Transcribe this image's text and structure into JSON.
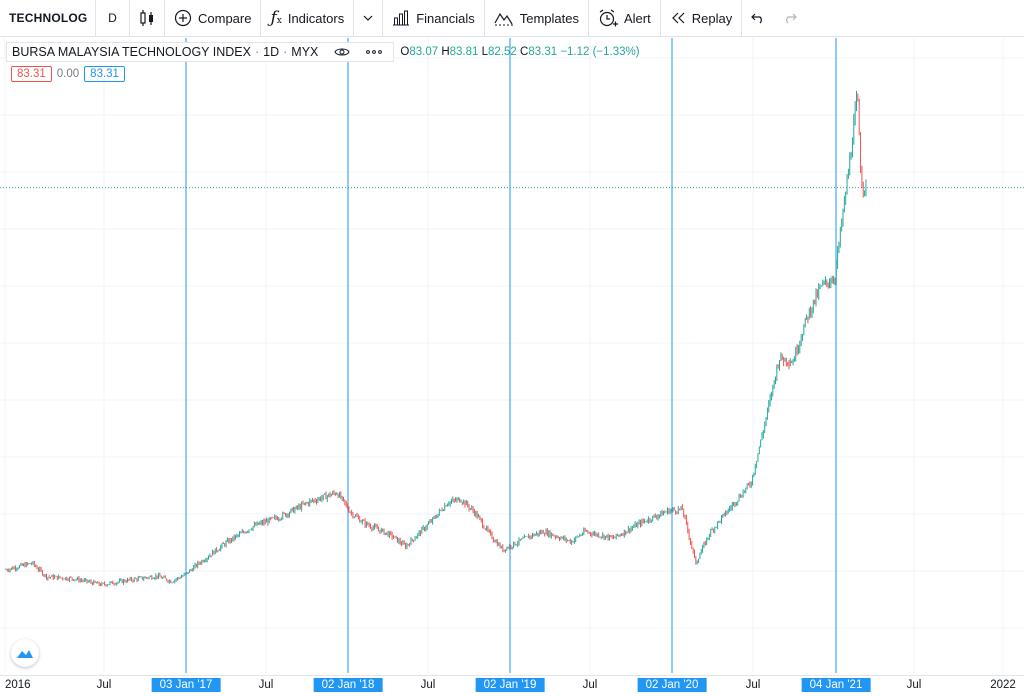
{
  "toolbar": {
    "symbol": "TECHNOLOG",
    "interval": "D",
    "compare": "Compare",
    "indicators": "Indicators",
    "financials": "Financials",
    "templates": "Templates",
    "alert": "Alert",
    "replay": "Replay"
  },
  "legend": {
    "title": "BURSA MALAYSIA TECHNOLOGY INDEX",
    "interval": "1D",
    "exchange": "MYX",
    "open_label": "O",
    "open": "83.07",
    "high_label": "H",
    "high": "83.81",
    "low_label": "L",
    "low": "82.52",
    "close_label": "C",
    "close": "83.31",
    "change": "−1.12 (−1.33%)"
  },
  "values": {
    "a": "83.31",
    "b": "0.00",
    "c": "83.31"
  },
  "xaxis": [
    {
      "label": "2016",
      "highlight": false
    },
    {
      "label": "Jul",
      "highlight": false
    },
    {
      "label": "03 Jan '17",
      "highlight": true
    },
    {
      "label": "Jul",
      "highlight": false
    },
    {
      "label": "02 Jan '18",
      "highlight": true
    },
    {
      "label": "Jul",
      "highlight": false
    },
    {
      "label": "02 Jan '19",
      "highlight": true
    },
    {
      "label": "Jul",
      "highlight": false
    },
    {
      "label": "02 Jan '20",
      "highlight": true
    },
    {
      "label": "Jul",
      "highlight": false
    },
    {
      "label": "04 Jan '21",
      "highlight": true
    },
    {
      "label": "Jul",
      "highlight": false
    },
    {
      "label": "2022",
      "highlight": false
    }
  ],
  "colors": {
    "up": "#26a69a",
    "down": "#ef5350",
    "marker": "#2196f3",
    "grid": "#f0f3fa",
    "priceline": "#26a69a"
  },
  "chart_data": {
    "type": "candlestick",
    "title": "BURSA MALAYSIA TECHNOLOGY INDEX",
    "last_close": 83.31,
    "x_range": [
      "2016-01",
      "2022-01"
    ],
    "series": [
      {
        "name": "BURSA MALAYSIA TECHNOLOGY INDEX",
        "points": [
          [
            "2016-01",
            26.5
          ],
          [
            "2016-03",
            27.5
          ],
          [
            "2016-04",
            25.5
          ],
          [
            "2016-06",
            25.2
          ],
          [
            "2016-08",
            24.3
          ],
          [
            "2016-10",
            25.0
          ],
          [
            "2016-12",
            25.6
          ],
          [
            "2017-01",
            24.8
          ],
          [
            "2017-02",
            25.8
          ],
          [
            "2017-03",
            27.4
          ],
          [
            "2017-05",
            30.5
          ],
          [
            "2017-07",
            33.0
          ],
          [
            "2017-09",
            34.5
          ],
          [
            "2017-11",
            36.6
          ],
          [
            "2018-01",
            38.0
          ],
          [
            "2018-02",
            35.0
          ],
          [
            "2018-03",
            33.5
          ],
          [
            "2018-05",
            31.6
          ],
          [
            "2018-06",
            30.0
          ],
          [
            "2018-08",
            34.0
          ],
          [
            "2018-09",
            36.5
          ],
          [
            "2018-10",
            37.0
          ],
          [
            "2018-11",
            35.0
          ],
          [
            "2018-12",
            32.0
          ],
          [
            "2019-01",
            29.5
          ],
          [
            "2019-03",
            31.5
          ],
          [
            "2019-04",
            32.2
          ],
          [
            "2019-06",
            30.7
          ],
          [
            "2019-07",
            32.2
          ],
          [
            "2019-09",
            31.2
          ],
          [
            "2019-11",
            33.5
          ],
          [
            "2020-01",
            35.3
          ],
          [
            "2020-02",
            35.5
          ],
          [
            "2020-03",
            27.5
          ],
          [
            "2020-04",
            32.0
          ],
          [
            "2020-05",
            34.5
          ],
          [
            "2020-07",
            39.5
          ],
          [
            "2020-08",
            48.5
          ],
          [
            "2020-09",
            58.0
          ],
          [
            "2020-10",
            57.5
          ],
          [
            "2020-11",
            64.0
          ],
          [
            "2020-12",
            68.5
          ],
          [
            "2021-01",
            70.0
          ],
          [
            "2021-02",
            86.0
          ],
          [
            "2021-02-20",
            97.0
          ],
          [
            "2021-03",
            84.0
          ],
          [
            "2021-03-12",
            83.31
          ]
        ]
      }
    ]
  }
}
